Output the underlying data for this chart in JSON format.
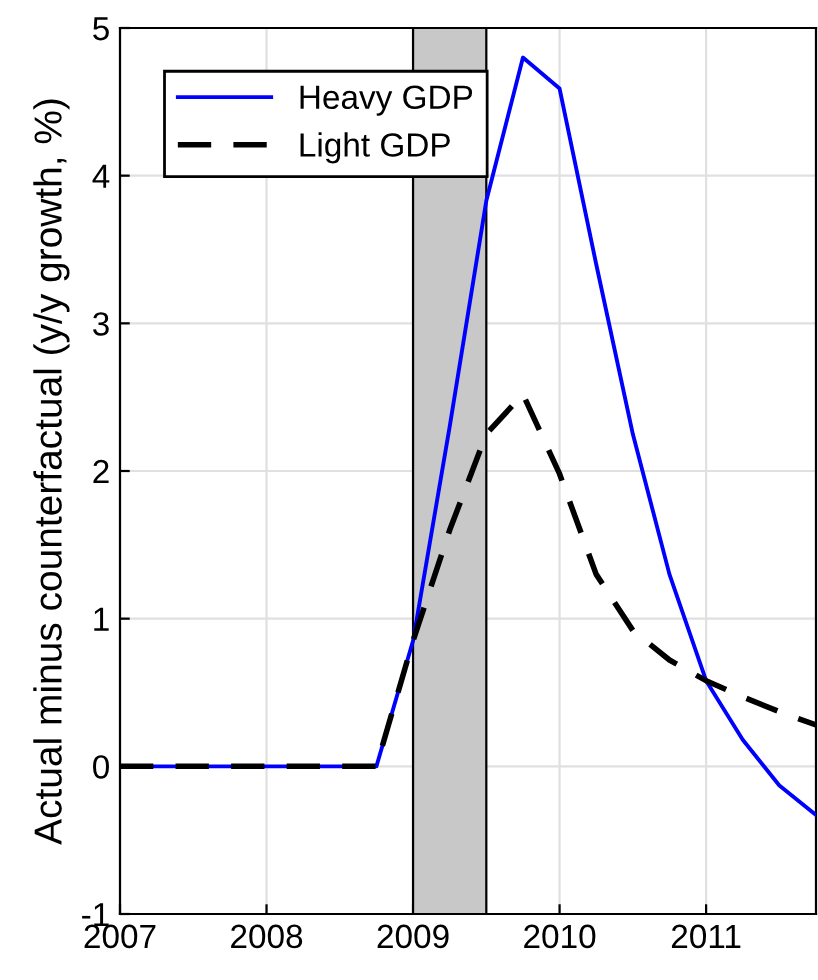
{
  "chart_data": {
    "type": "line",
    "ylabel": "Actual minus counterfactual (y/y growth, %)",
    "x": [
      2007,
      2007.25,
      2007.5,
      2007.75,
      2008,
      2008.25,
      2008.5,
      2008.75,
      2009,
      2009.25,
      2009.5,
      2009.75,
      2010,
      2010.25,
      2010.5,
      2010.75,
      2011,
      2011.25,
      2011.5,
      2011.75
    ],
    "series": [
      {
        "name": "Heavy GDP",
        "color": "#0000ff",
        "line_style": "solid",
        "values": [
          0,
          0,
          0,
          0,
          0,
          0,
          0,
          0,
          0.85,
          2.3,
          3.83,
          4.8,
          4.59,
          3.4,
          2.25,
          1.3,
          0.58,
          0.18,
          -0.13,
          -0.33
        ]
      },
      {
        "name": "Light GDP",
        "color": "#000000",
        "line_style": "dashed",
        "values": [
          0,
          0,
          0,
          0,
          0,
          0,
          0,
          0,
          0.85,
          1.6,
          2.25,
          2.52,
          1.98,
          1.3,
          0.92,
          0.72,
          0.58,
          0.47,
          0.37,
          0.28
        ]
      }
    ],
    "bands": [
      {
        "axis": "x",
        "from": 2009,
        "to": 2009.5,
        "color": "#c8c8c8"
      }
    ],
    "xlim": [
      2007,
      2011.75
    ],
    "xticks": [
      2007,
      2008,
      2009,
      2010,
      2011
    ],
    "ylim": [
      -1,
      5
    ],
    "yticks": [
      -1,
      0,
      1,
      2,
      3,
      4,
      5
    ],
    "grid": true,
    "legend": "top left"
  }
}
